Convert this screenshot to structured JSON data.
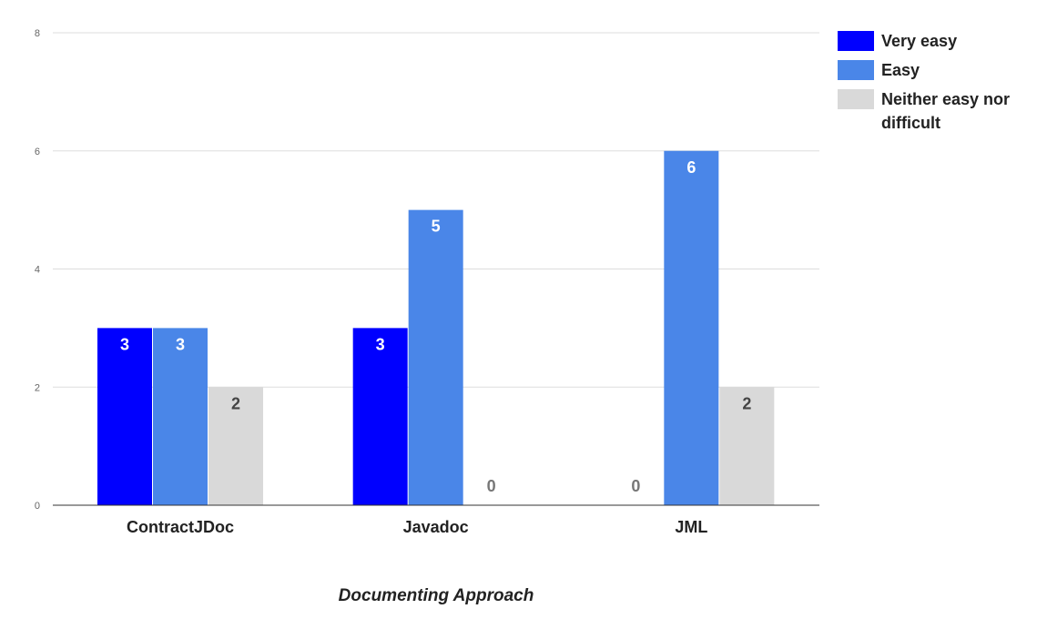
{
  "chart_data": {
    "type": "bar",
    "categories": [
      "ContractJDoc",
      "Javadoc",
      "JML"
    ],
    "series": [
      {
        "name": "Very easy",
        "values": [
          3,
          3,
          0
        ],
        "color": "#0000ff"
      },
      {
        "name": "Easy",
        "values": [
          3,
          5,
          6
        ],
        "color": "#4a86e8"
      },
      {
        "name": "Neither easy nor difficult",
        "values": [
          2,
          0,
          2
        ],
        "color": "#d9d9d9"
      }
    ],
    "title": "",
    "xlabel": "Documenting Approach",
    "ylabel": "",
    "ylim": [
      0,
      8
    ],
    "yticks": [
      0,
      2,
      4,
      6,
      8
    ],
    "grid": true,
    "legend_position": "top-right",
    "data_labels": true
  }
}
